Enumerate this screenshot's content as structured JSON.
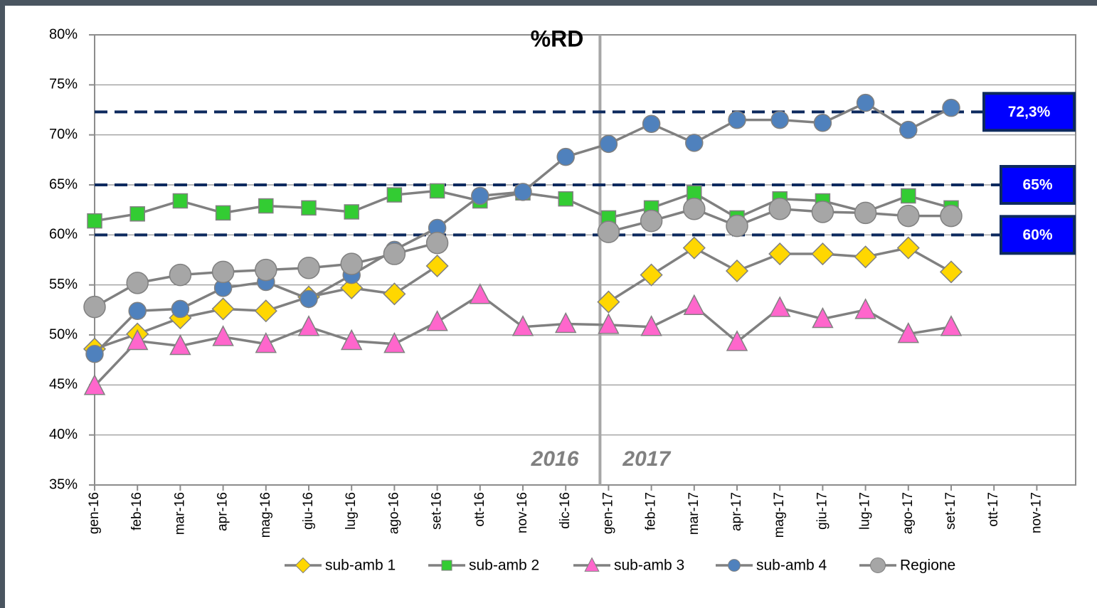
{
  "chart_data": {
    "type": "line",
    "title": "%RD",
    "categories": [
      "gen-16",
      "feb-16",
      "mar-16",
      "apr-16",
      "mag-16",
      "giu-16",
      "lug-16",
      "ago-16",
      "set-16",
      "ott-16",
      "nov-16",
      "dic-16",
      "gen-17",
      "feb-17",
      "mar-17",
      "apr-17",
      "mag-17",
      "giu-17",
      "lug-17",
      "ago-17",
      "set-17",
      "ott-17",
      "nov-17"
    ],
    "line_color": "#808080",
    "series": [
      {
        "name": "sub-amb 1",
        "color": "#ffd700",
        "marker": "diamond",
        "values": [
          48.6,
          50.1,
          51.7,
          52.6,
          52.4,
          53.8,
          54.7,
          54.1,
          56.9,
          null,
          null,
          null,
          53.3,
          56.0,
          58.7,
          56.4,
          58.1,
          58.1,
          57.8,
          58.7,
          56.3,
          null,
          null
        ]
      },
      {
        "name": "sub-amb 2",
        "color": "#33cc33",
        "marker": "square",
        "values": [
          61.4,
          62.1,
          63.4,
          62.2,
          62.9,
          62.7,
          62.3,
          64.0,
          64.4,
          63.4,
          64.2,
          63.6,
          61.7,
          62.7,
          64.2,
          61.7,
          63.6,
          63.4,
          62.3,
          63.9,
          62.7,
          null,
          null
        ]
      },
      {
        "name": "sub-amb 3",
        "color": "#ff66cc",
        "marker": "triangle",
        "values": [
          44.9,
          49.4,
          48.9,
          49.8,
          49.1,
          50.8,
          49.4,
          49.1,
          51.3,
          54.0,
          50.8,
          51.1,
          51.0,
          50.8,
          52.9,
          49.3,
          52.7,
          51.6,
          52.5,
          50.1,
          50.8,
          null,
          null
        ]
      },
      {
        "name": "sub-amb 4",
        "color": "#4f81bd",
        "marker": "circle",
        "values": [
          48.1,
          52.4,
          52.6,
          54.7,
          55.3,
          53.6,
          56.0,
          58.5,
          60.7,
          63.9,
          64.3,
          67.8,
          69.1,
          71.1,
          69.2,
          71.5,
          71.5,
          71.2,
          73.2,
          70.5,
          72.7,
          null,
          null
        ]
      },
      {
        "name": "Regione",
        "color": "#a6a6a6",
        "marker": "bigcircle",
        "values": [
          52.8,
          55.2,
          56.0,
          56.3,
          56.5,
          56.7,
          57.1,
          58.1,
          59.2,
          null,
          null,
          null,
          60.3,
          61.4,
          62.6,
          60.9,
          62.6,
          62.3,
          62.2,
          61.9,
          61.9,
          null,
          null
        ]
      }
    ],
    "ylim": [
      35,
      80
    ],
    "yticks": [
      {
        "value": 35,
        "label": "35%"
      },
      {
        "value": 40,
        "label": "40%"
      },
      {
        "value": 45,
        "label": "45%"
      },
      {
        "value": 50,
        "label": "50%"
      },
      {
        "value": 55,
        "label": "55%"
      },
      {
        "value": 60,
        "label": "60%"
      },
      {
        "value": 65,
        "label": "65%"
      },
      {
        "value": 70,
        "label": "70%"
      },
      {
        "value": 75,
        "label": "75%"
      },
      {
        "value": 80,
        "label": "80%"
      }
    ],
    "grid": true,
    "reference_lines": [
      {
        "value": 72.3,
        "label": "72,3%"
      },
      {
        "value": 65,
        "label": "65%"
      },
      {
        "value": 60,
        "label": "60%"
      }
    ],
    "year_labels": [
      "2016",
      "2017"
    ],
    "legend": "bottom"
  }
}
